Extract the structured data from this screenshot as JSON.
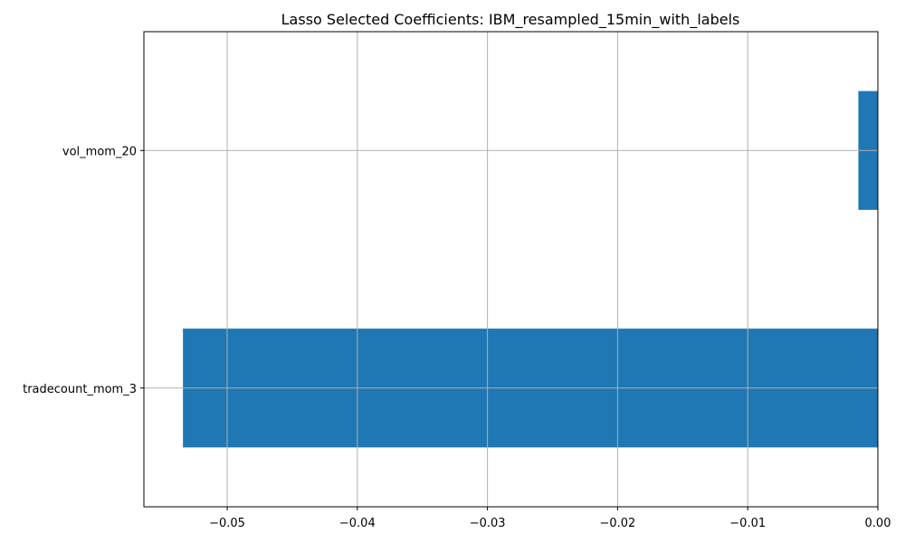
{
  "chart_data": {
    "type": "bar",
    "orientation": "horizontal",
    "title": "Lasso Selected Coefficients: IBM_resampled_15min_with_labels",
    "xlabel": "",
    "ylabel": "",
    "categories": [
      "vol_mom_20",
      "tradecount_mom_3"
    ],
    "values": [
      -0.0015,
      -0.0534
    ],
    "xlim": [
      -0.0564,
      0.0
    ],
    "xticks": [
      -0.05,
      -0.04,
      -0.03,
      -0.02,
      -0.01,
      0.0
    ],
    "xtick_labels": [
      "−0.05",
      "−0.04",
      "−0.03",
      "−0.02",
      "−0.01",
      "0.00"
    ],
    "grid": true,
    "bar_color": "#1f77b4"
  }
}
